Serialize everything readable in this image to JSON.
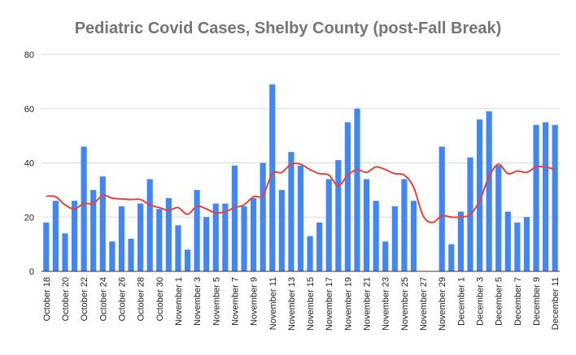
{
  "chart_data": {
    "type": "bar",
    "title": "Pediatric Covid Cases, Shelby County (post-Fall Break)",
    "xlabel": "",
    "ylabel": "",
    "ylim": [
      0,
      80
    ],
    "yticks": [
      0,
      20,
      40,
      60,
      80
    ],
    "grid": true,
    "legend": "none",
    "colors": {
      "bar": "#4285f4",
      "line": "#ea4335",
      "title": "#757575",
      "grid": "#d9d9d9"
    },
    "categories": [
      "October 18",
      "October 19",
      "October 20",
      "October 21",
      "October 22",
      "October 23",
      "October 24",
      "October 25",
      "October 26",
      "October 27",
      "October 28",
      "October 29",
      "October 30",
      "October 31",
      "November 1",
      "November 2",
      "November 3",
      "November 4",
      "November 5",
      "November 6",
      "November 7",
      "November 8",
      "November 9",
      "November 10",
      "November 11",
      "November 12",
      "November 13",
      "November 14",
      "November 15",
      "November 16",
      "November 17",
      "November 18",
      "November 19",
      "November 20",
      "November 21",
      "November 22",
      "November 23",
      "November 24",
      "November 25",
      "November 26",
      "November 27",
      "November 28",
      "November 29",
      "November 30",
      "December 1",
      "December 2",
      "December 3",
      "December 4",
      "December 5",
      "December 6",
      "December 7",
      "December 8",
      "December 9",
      "December 10",
      "December 11"
    ],
    "tick_labels": [
      "October 18",
      "October 20",
      "October 22",
      "October 24",
      "October 26",
      "October 28",
      "October 30",
      "November 1",
      "November 3",
      "November 5",
      "November 7",
      "November 9",
      "November 11",
      "November 13",
      "November 15",
      "November 17",
      "November 19",
      "November 21",
      "November 23",
      "November 25",
      "November 27",
      "November 29",
      "December 1",
      "December 3",
      "December 5",
      "December 7",
      "December 9",
      "December 11"
    ],
    "series": [
      {
        "name": "Cases",
        "type": "bar",
        "values": [
          18,
          26,
          14,
          26,
          46,
          30,
          35,
          11,
          24,
          12,
          25,
          34,
          23,
          27,
          17,
          8,
          30,
          20,
          25,
          25,
          39,
          24,
          27,
          40,
          69,
          30,
          44,
          39,
          13,
          18,
          34,
          41,
          55,
          60,
          34,
          26,
          11,
          24,
          34,
          26,
          null,
          null,
          46,
          10,
          22,
          42,
          56,
          59,
          39,
          22,
          18,
          20,
          54,
          55,
          54
        ]
      },
      {
        "name": "Trend",
        "type": "line",
        "values": [
          27.7,
          27.5,
          24.5,
          23,
          25,
          25,
          28,
          27,
          26.7,
          26.5,
          26.5,
          24.5,
          23.5,
          22.5,
          23.5,
          21,
          24,
          23,
          21.5,
          22,
          23.5,
          24.5,
          27.5,
          28,
          36,
          36.5,
          39.5,
          39.5,
          37.5,
          36,
          35.5,
          31.5,
          35.5,
          37.5,
          36.5,
          38.5,
          37.5,
          36,
          35.5,
          31,
          20.5,
          18,
          20.5,
          20,
          20,
          21,
          26,
          35,
          39.5,
          36,
          37,
          36.5,
          38.5,
          38.5,
          37.5
        ]
      }
    ]
  }
}
